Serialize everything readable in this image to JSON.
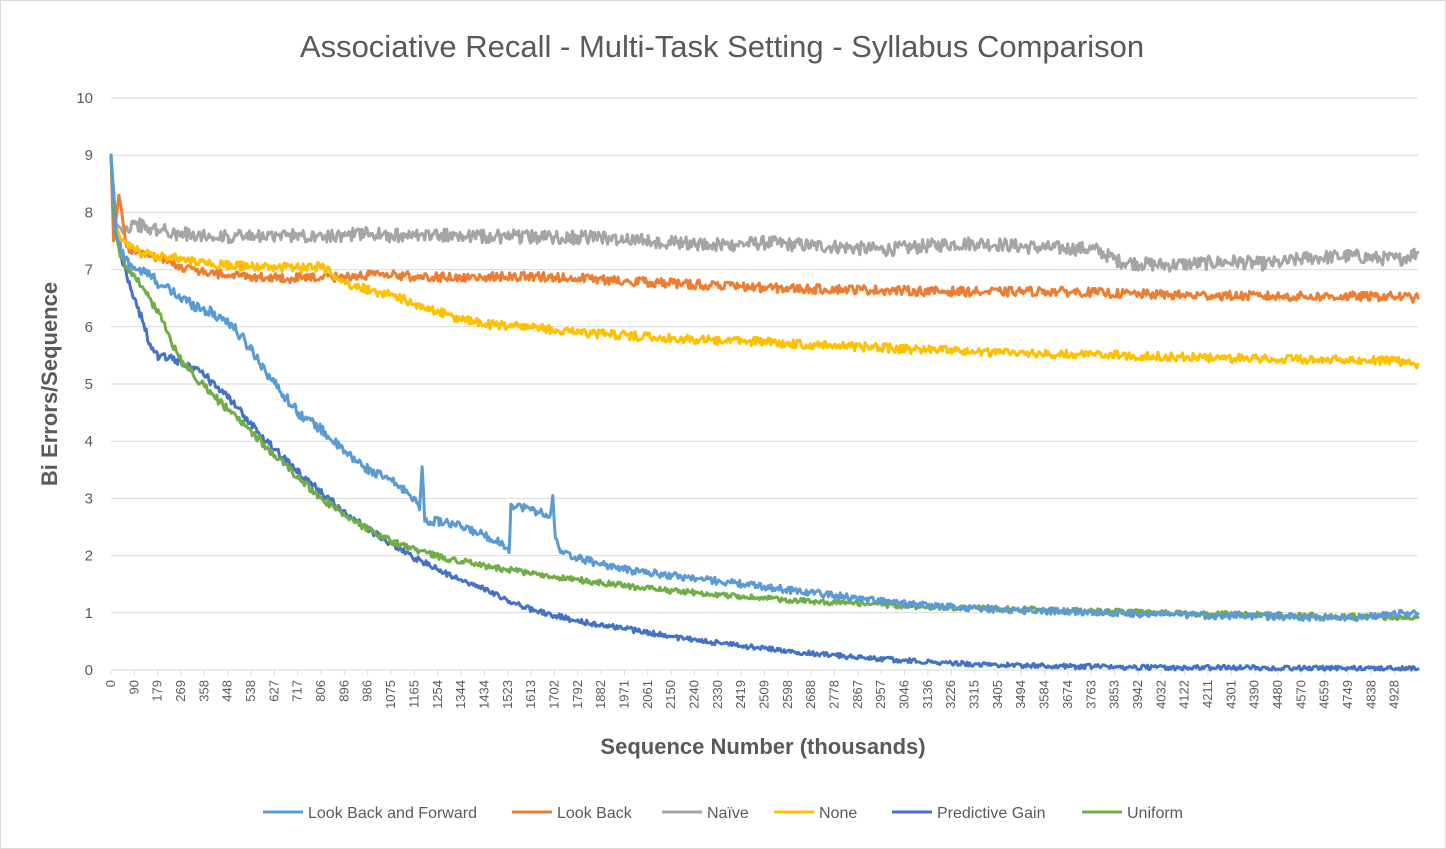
{
  "chart_data": {
    "type": "line",
    "title": "Associative Recall - Multi-Task Setting - Syllabus Comparison",
    "xlabel": "Sequence Number (thousands)",
    "ylabel": "Bi Errors/Sequence",
    "ylim": [
      0,
      10
    ],
    "xlim": [
      0,
      5000
    ],
    "grid": true,
    "legend_position": "bottom",
    "y_ticks": [
      "0",
      "1",
      "2",
      "3",
      "4",
      "5",
      "6",
      "7",
      "8",
      "9",
      "10"
    ],
    "x_ticks": [
      "0",
      "90",
      "179",
      "269",
      "358",
      "448",
      "538",
      "627",
      "717",
      "806",
      "896",
      "986",
      "1075",
      "1165",
      "1254",
      "1344",
      "1434",
      "1523",
      "1613",
      "1702",
      "1792",
      "1882",
      "1971",
      "2061",
      "2150",
      "2240",
      "2330",
      "2419",
      "2509",
      "2598",
      "2688",
      "2778",
      "2867",
      "2957",
      "3046",
      "3136",
      "3226",
      "3315",
      "3405",
      "3494",
      "3584",
      "3674",
      "3763",
      "3853",
      "3942",
      "4032",
      "4122",
      "4211",
      "4301",
      "4390",
      "4480",
      "4570",
      "4659",
      "4749",
      "4838",
      "4928"
    ],
    "series": [
      {
        "name": "Look Back and Forward",
        "color": "#5B9BD5",
        "noise": 0.05,
        "x": [
          0,
          20,
          50,
          100,
          150,
          200,
          269,
          358,
          448,
          538,
          627,
          717,
          806,
          896,
          986,
          1075,
          1165,
          1180,
          1190,
          1200,
          1254,
          1344,
          1434,
          1500,
          1523,
          1530,
          1613,
          1680,
          1690,
          1700,
          1720,
          1792,
          1882,
          1971,
          2061,
          2150,
          2240,
          2330,
          2419,
          2509,
          2598,
          2688,
          2778,
          2867,
          2957,
          3046,
          3136,
          3226,
          3315,
          3405,
          3494,
          3584,
          3674,
          3763,
          3853,
          3942,
          4032,
          4122,
          4211,
          4301,
          4390,
          4480,
          4570,
          4659,
          4749,
          4838,
          4928,
          5000
        ],
        "values": [
          9.0,
          7.6,
          7.2,
          7.0,
          6.9,
          6.7,
          6.5,
          6.3,
          6.1,
          5.6,
          5.0,
          4.5,
          4.2,
          3.8,
          3.5,
          3.3,
          3.0,
          2.8,
          3.55,
          2.6,
          2.6,
          2.5,
          2.35,
          2.2,
          2.05,
          2.9,
          2.8,
          2.7,
          3.05,
          2.3,
          2.05,
          1.95,
          1.85,
          1.75,
          1.7,
          1.65,
          1.6,
          1.55,
          1.5,
          1.45,
          1.4,
          1.35,
          1.3,
          1.25,
          1.2,
          1.15,
          1.12,
          1.1,
          1.08,
          1.06,
          1.04,
          1.03,
          1.02,
          1.01,
          1.0,
          0.98,
          0.97,
          0.96,
          0.95,
          0.95,
          0.94,
          0.93,
          0.92,
          0.92,
          0.91,
          0.95,
          1.0,
          0.98
        ]
      },
      {
        "name": "Look Back",
        "color": "#ED7D31",
        "noise": 0.04,
        "x": [
          0,
          10,
          30,
          60,
          100,
          179,
          269,
          358,
          448,
          538,
          627,
          717,
          806,
          896,
          986,
          1075,
          1165,
          1254,
          1344,
          1434,
          1523,
          1613,
          1702,
          1792,
          1882,
          1971,
          2061,
          2150,
          2240,
          2330,
          2419,
          2509,
          2598,
          2688,
          2778,
          2867,
          2957,
          3046,
          3136,
          3226,
          3315,
          3405,
          3494,
          3584,
          3674,
          3763,
          3853,
          3942,
          4032,
          4122,
          4211,
          4301,
          4390,
          4480,
          4570,
          4659,
          4749,
          4838,
          4928,
          5000
        ],
        "values": [
          9.0,
          7.5,
          8.3,
          7.4,
          7.3,
          7.2,
          7.05,
          6.95,
          6.9,
          6.88,
          6.86,
          6.85,
          6.86,
          6.88,
          6.9,
          6.9,
          6.88,
          6.87,
          6.86,
          6.87,
          6.88,
          6.88,
          6.87,
          6.85,
          6.82,
          6.8,
          6.78,
          6.76,
          6.74,
          6.72,
          6.7,
          6.68,
          6.67,
          6.66,
          6.66,
          6.65,
          6.64,
          6.63,
          6.62,
          6.62,
          6.61,
          6.61,
          6.62,
          6.62,
          6.61,
          6.6,
          6.58,
          6.57,
          6.56,
          6.55,
          6.55,
          6.54,
          6.54,
          6.53,
          6.53,
          6.53,
          6.53,
          6.53,
          6.53,
          6.5
        ]
      },
      {
        "name": "Naïve",
        "color": "#A5A5A5",
        "noise": 0.06,
        "x": [
          0,
          20,
          40,
          60,
          90,
          179,
          269,
          358,
          448,
          538,
          627,
          717,
          806,
          896,
          986,
          1075,
          1165,
          1254,
          1344,
          1434,
          1523,
          1613,
          1702,
          1792,
          1882,
          1971,
          2061,
          2150,
          2240,
          2330,
          2419,
          2509,
          2598,
          2688,
          2778,
          2867,
          2957,
          3046,
          3136,
          3226,
          3315,
          3405,
          3494,
          3584,
          3674,
          3763,
          3853,
          3942,
          4032,
          4122,
          4211,
          4301,
          4390,
          4480,
          4570,
          4659,
          4749,
          4838,
          4928,
          5000
        ],
        "values": [
          9.0,
          7.8,
          7.7,
          7.75,
          7.8,
          7.7,
          7.62,
          7.6,
          7.58,
          7.57,
          7.58,
          7.6,
          7.6,
          7.6,
          7.62,
          7.6,
          7.58,
          7.6,
          7.6,
          7.58,
          7.58,
          7.57,
          7.57,
          7.56,
          7.55,
          7.53,
          7.5,
          7.48,
          7.45,
          7.43,
          7.45,
          7.47,
          7.44,
          7.42,
          7.4,
          7.37,
          7.35,
          7.38,
          7.42,
          7.45,
          7.46,
          7.44,
          7.4,
          7.38,
          7.37,
          7.36,
          7.15,
          7.1,
          7.08,
          7.1,
          7.12,
          7.14,
          7.1,
          7.12,
          7.2,
          7.22,
          7.24,
          7.2,
          7.18,
          7.3
        ]
      },
      {
        "name": "None",
        "color": "#FFC000",
        "noise": 0.04,
        "x": [
          0,
          15,
          40,
          90,
          179,
          269,
          358,
          448,
          538,
          627,
          717,
          806,
          850,
          896,
          986,
          1075,
          1165,
          1254,
          1344,
          1434,
          1523,
          1613,
          1702,
          1792,
          1882,
          1971,
          2061,
          2150,
          2240,
          2330,
          2419,
          2509,
          2598,
          2688,
          2778,
          2867,
          2957,
          3046,
          3136,
          3226,
          3315,
          3405,
          3494,
          3584,
          3674,
          3763,
          3853,
          3942,
          4032,
          4122,
          4211,
          4301,
          4390,
          4480,
          4570,
          4659,
          4749,
          4838,
          4928,
          5000
        ],
        "values": [
          9.0,
          7.8,
          7.5,
          7.35,
          7.25,
          7.18,
          7.12,
          7.08,
          7.05,
          7.04,
          7.03,
          7.05,
          6.9,
          6.75,
          6.65,
          6.55,
          6.4,
          6.25,
          6.12,
          6.05,
          6.02,
          5.98,
          5.95,
          5.9,
          5.87,
          5.85,
          5.82,
          5.8,
          5.78,
          5.76,
          5.75,
          5.73,
          5.71,
          5.69,
          5.67,
          5.65,
          5.63,
          5.61,
          5.59,
          5.58,
          5.56,
          5.55,
          5.54,
          5.53,
          5.52,
          5.51,
          5.5,
          5.49,
          5.48,
          5.47,
          5.46,
          5.45,
          5.45,
          5.44,
          5.43,
          5.43,
          5.42,
          5.41,
          5.4,
          5.35
        ]
      },
      {
        "name": "Predictive Gain",
        "color": "#4472C4",
        "noise": 0.04,
        "x": [
          0,
          10,
          20,
          40,
          60,
          90,
          120,
          150,
          179,
          220,
          269,
          358,
          448,
          538,
          627,
          717,
          806,
          896,
          986,
          1075,
          1165,
          1254,
          1344,
          1434,
          1523,
          1613,
          1702,
          1792,
          1882,
          1971,
          2061,
          2150,
          2240,
          2330,
          2419,
          2509,
          2598,
          2688,
          2778,
          2867,
          2957,
          3046,
          3136,
          3226,
          3315,
          3405,
          3494,
          3584,
          3674,
          3763,
          3853,
          3942,
          4032,
          4122,
          4211,
          4301,
          4390,
          4480,
          4570,
          4659,
          4749,
          4838,
          4928,
          5000
        ],
        "values": [
          9.0,
          8.0,
          7.6,
          7.2,
          6.9,
          6.5,
          6.1,
          5.7,
          5.5,
          5.45,
          5.4,
          5.15,
          4.75,
          4.3,
          3.85,
          3.45,
          3.1,
          2.75,
          2.45,
          2.2,
          1.95,
          1.75,
          1.55,
          1.4,
          1.2,
          1.05,
          0.95,
          0.85,
          0.78,
          0.72,
          0.65,
          0.58,
          0.52,
          0.47,
          0.42,
          0.38,
          0.33,
          0.29,
          0.25,
          0.22,
          0.19,
          0.17,
          0.14,
          0.12,
          0.1,
          0.09,
          0.08,
          0.07,
          0.06,
          0.06,
          0.05,
          0.05,
          0.04,
          0.04,
          0.04,
          0.04,
          0.04,
          0.03,
          0.03,
          0.03,
          0.03,
          0.03,
          0.03,
          0.02
        ]
      },
      {
        "name": "Uniform",
        "color": "#70AD47",
        "noise": 0.04,
        "x": [
          0,
          10,
          20,
          40,
          60,
          90,
          120,
          150,
          179,
          269,
          358,
          448,
          538,
          627,
          717,
          806,
          896,
          986,
          1075,
          1165,
          1254,
          1344,
          1434,
          1523,
          1613,
          1702,
          1792,
          1882,
          1971,
          2061,
          2150,
          2240,
          2330,
          2419,
          2509,
          2598,
          2688,
          2778,
          2867,
          2957,
          3046,
          3136,
          3226,
          3315,
          3405,
          3494,
          3584,
          3674,
          3763,
          3853,
          3942,
          4032,
          4122,
          4211,
          4301,
          4390,
          4480,
          4570,
          4659,
          4749,
          4838,
          4928,
          5000
        ],
        "values": [
          9.0,
          8.0,
          7.6,
          7.2,
          7.05,
          6.9,
          6.7,
          6.5,
          6.25,
          5.4,
          4.95,
          4.55,
          4.15,
          3.75,
          3.35,
          3.0,
          2.7,
          2.45,
          2.25,
          2.1,
          1.98,
          1.9,
          1.82,
          1.75,
          1.68,
          1.62,
          1.57,
          1.52,
          1.47,
          1.42,
          1.38,
          1.35,
          1.31,
          1.28,
          1.25,
          1.22,
          1.2,
          1.18,
          1.16,
          1.14,
          1.12,
          1.1,
          1.09,
          1.08,
          1.07,
          1.06,
          1.05,
          1.04,
          1.03,
          1.02,
          1.01,
          1.0,
          0.99,
          0.98,
          0.97,
          0.97,
          0.96,
          0.95,
          0.95,
          0.94,
          0.93,
          0.92,
          0.92
        ]
      }
    ]
  }
}
